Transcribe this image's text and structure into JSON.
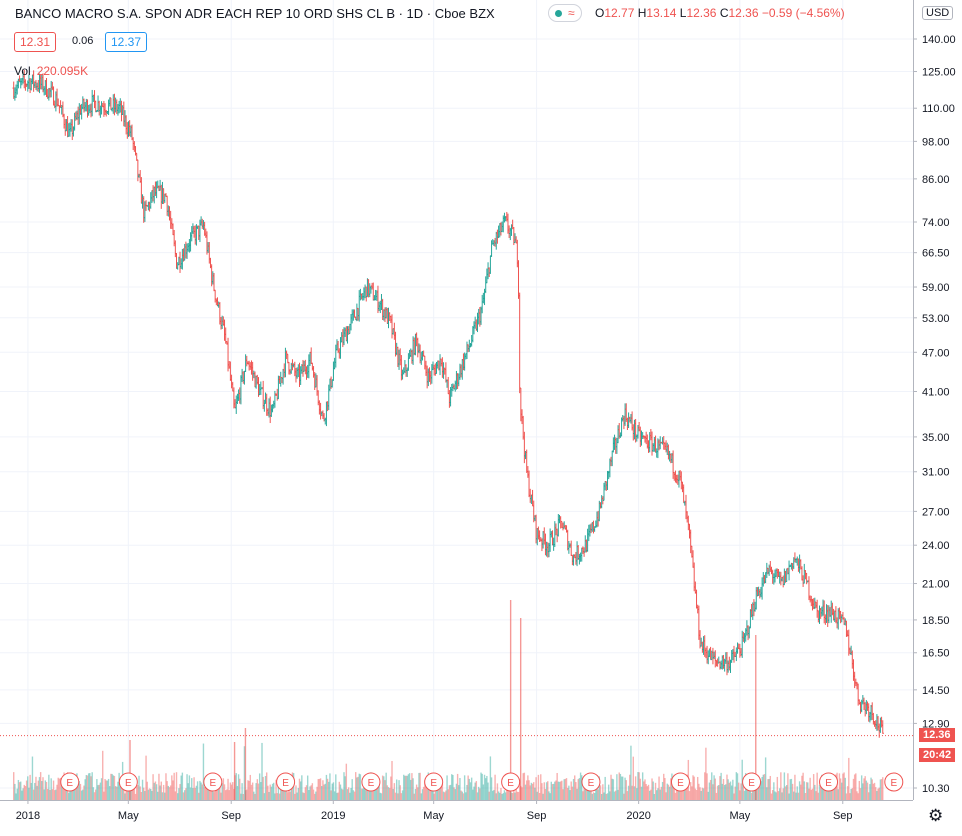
{
  "header": {
    "title": "BANCO MACRO S.A. SPON ADR EACH REP 10 ORD SHS CL B · 1D · Cboe BZX",
    "ohlc": {
      "o_key": "O",
      "o": "12.77",
      "h_key": "H",
      "h": "13.14",
      "l_key": "L",
      "l": "12.36",
      "c_key": "C",
      "c": "12.36",
      "change": "−0.59 (−4.56%)"
    },
    "bid": "12.31",
    "spread": "0.06",
    "ask": "12.37",
    "vol_label": "Vol",
    "vol_value": "220.095K",
    "wave": "≈"
  },
  "axis_right": {
    "currency": "USD",
    "last_price": "12.36",
    "countdown": "20:42",
    "ticks": [
      "140.00",
      "125.00",
      "110.00",
      "98.00",
      "86.00",
      "74.00",
      "66.50",
      "59.00",
      "53.00",
      "47.00",
      "41.00",
      "35.00",
      "31.00",
      "27.00",
      "24.00",
      "21.00",
      "18.50",
      "16.50",
      "14.50",
      "12.90",
      "10.30"
    ]
  },
  "axis_bottom": {
    "ticks": [
      "2018",
      "May",
      "Sep",
      "2019",
      "May",
      "Sep",
      "2020",
      "May",
      "Sep"
    ]
  },
  "chart_data": {
    "type": "candlestick",
    "scale": "log",
    "ylim": [
      10.3,
      140
    ],
    "earnings_marker": "E",
    "series": [
      {
        "name": "",
        "values": [
          [
            "2017-12-15",
            118
          ],
          [
            "2018-01-02",
            121
          ],
          [
            "2018-01-20",
            119
          ],
          [
            "2018-02-05",
            113
          ],
          [
            "2018-02-20",
            100
          ],
          [
            "2018-03-05",
            110
          ],
          [
            "2018-03-20",
            112
          ],
          [
            "2018-04-05",
            111
          ],
          [
            "2018-04-20",
            110
          ],
          [
            "2018-05-05",
            100
          ],
          [
            "2018-05-20",
            76
          ],
          [
            "2018-06-01",
            82
          ],
          [
            "2018-06-15",
            81
          ],
          [
            "2018-06-28",
            64
          ],
          [
            "2018-07-15",
            70
          ],
          [
            "2018-07-30",
            73
          ],
          [
            "2018-08-10",
            60
          ],
          [
            "2018-08-25",
            49
          ],
          [
            "2018-09-05",
            38
          ],
          [
            "2018-09-20",
            46
          ],
          [
            "2018-10-05",
            41
          ],
          [
            "2018-10-20",
            38
          ],
          [
            "2018-11-05",
            46
          ],
          [
            "2018-11-20",
            43
          ],
          [
            "2018-12-05",
            46
          ],
          [
            "2018-12-20",
            37
          ],
          [
            "2019-01-05",
            47
          ],
          [
            "2019-01-25",
            53
          ],
          [
            "2019-02-10",
            59
          ],
          [
            "2019-02-25",
            56
          ],
          [
            "2019-03-10",
            52
          ],
          [
            "2019-03-25",
            43
          ],
          [
            "2019-04-10",
            49
          ],
          [
            "2019-04-25",
            43
          ],
          [
            "2019-05-10",
            46
          ],
          [
            "2019-05-20",
            40
          ],
          [
            "2019-06-01",
            44
          ],
          [
            "2019-06-15",
            49
          ],
          [
            "2019-06-28",
            55
          ],
          [
            "2019-07-10",
            68
          ],
          [
            "2019-07-25",
            74
          ],
          [
            "2019-08-05",
            70
          ],
          [
            "2019-08-10",
            65
          ],
          [
            "2019-08-12",
            40
          ],
          [
            "2019-08-20",
            31
          ],
          [
            "2019-09-01",
            25
          ],
          [
            "2019-09-15",
            24
          ],
          [
            "2019-10-01",
            26
          ],
          [
            "2019-10-15",
            23
          ],
          [
            "2019-10-30",
            24
          ],
          [
            "2019-11-15",
            27
          ],
          [
            "2019-12-01",
            33
          ],
          [
            "2019-12-15",
            38
          ],
          [
            "2020-01-01",
            35
          ],
          [
            "2020-01-20",
            34
          ],
          [
            "2020-02-05",
            33
          ],
          [
            "2020-02-20",
            30
          ],
          [
            "2020-03-01",
            25
          ],
          [
            "2020-03-15",
            17
          ],
          [
            "2020-04-01",
            16
          ],
          [
            "2020-04-20",
            16
          ],
          [
            "2020-05-05",
            17
          ],
          [
            "2020-05-20",
            20
          ],
          [
            "2020-06-05",
            22
          ],
          [
            "2020-06-20",
            21
          ],
          [
            "2020-07-05",
            23
          ],
          [
            "2020-07-20",
            21
          ],
          [
            "2020-08-01",
            19
          ],
          [
            "2020-08-20",
            19
          ],
          [
            "2020-09-05",
            18
          ],
          [
            "2020-09-20",
            14
          ],
          [
            "2020-10-05",
            13.5
          ],
          [
            "2020-10-20",
            12.36
          ]
        ]
      }
    ],
    "earnings_dates": [
      "2018-02-20",
      "2018-05-01",
      "2018-08-10",
      "2018-11-05",
      "2019-02-15",
      "2019-05-01",
      "2019-08-01",
      "2019-11-05",
      "2020-02-20",
      "2020-05-15",
      "2020-08-15",
      "2020-11-01"
    ]
  }
}
